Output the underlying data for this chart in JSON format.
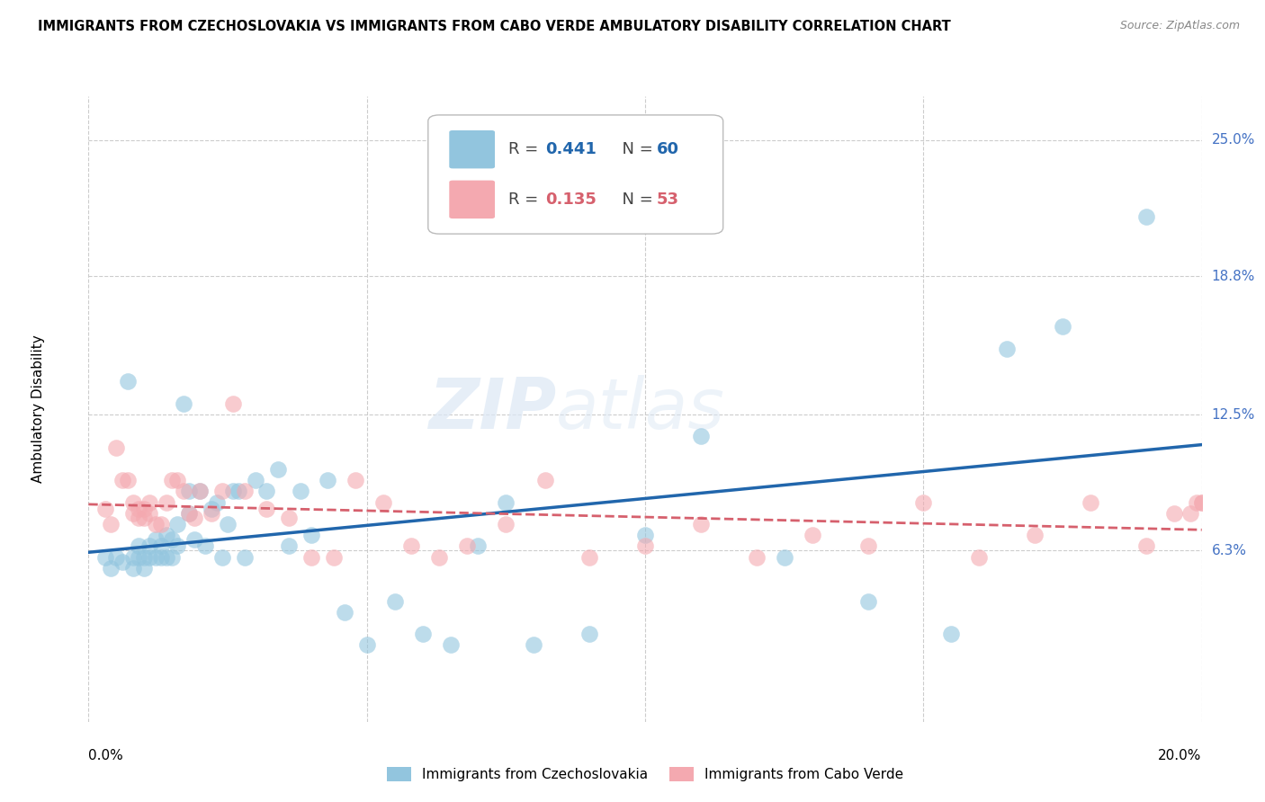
{
  "title": "IMMIGRANTS FROM CZECHOSLOVAKIA VS IMMIGRANTS FROM CABO VERDE AMBULATORY DISABILITY CORRELATION CHART",
  "source": "Source: ZipAtlas.com",
  "ylabel": "Ambulatory Disability",
  "ytick_labels": [
    "6.3%",
    "12.5%",
    "18.8%",
    "25.0%"
  ],
  "ytick_values": [
    0.063,
    0.125,
    0.188,
    0.25
  ],
  "xlim": [
    0.0,
    0.2
  ],
  "ylim": [
    -0.015,
    0.27
  ],
  "legend_blue_r": "R = 0.441",
  "legend_blue_n": "N = 60",
  "legend_pink_r": "R = 0.135",
  "legend_pink_n": "N = 53",
  "legend_blue_label": "Immigrants from Czechoslovakia",
  "legend_pink_label": "Immigrants from Cabo Verde",
  "blue_color": "#92c5de",
  "pink_color": "#f4a9b0",
  "blue_line_color": "#2166ac",
  "pink_line_color": "#d6606d",
  "watermark_zip": "ZIP",
  "watermark_atlas": "atlas",
  "blue_dots_x": [
    0.003,
    0.004,
    0.005,
    0.006,
    0.007,
    0.008,
    0.008,
    0.009,
    0.009,
    0.01,
    0.01,
    0.011,
    0.011,
    0.012,
    0.012,
    0.013,
    0.013,
    0.014,
    0.014,
    0.015,
    0.015,
    0.016,
    0.016,
    0.017,
    0.018,
    0.018,
    0.019,
    0.02,
    0.021,
    0.022,
    0.023,
    0.024,
    0.025,
    0.026,
    0.027,
    0.028,
    0.03,
    0.032,
    0.034,
    0.036,
    0.038,
    0.04,
    0.043,
    0.046,
    0.05,
    0.055,
    0.06,
    0.065,
    0.07,
    0.075,
    0.08,
    0.09,
    0.1,
    0.11,
    0.125,
    0.14,
    0.155,
    0.165,
    0.175,
    0.19
  ],
  "blue_dots_y": [
    0.06,
    0.055,
    0.06,
    0.058,
    0.14,
    0.06,
    0.055,
    0.06,
    0.065,
    0.06,
    0.055,
    0.065,
    0.06,
    0.068,
    0.06,
    0.06,
    0.065,
    0.07,
    0.06,
    0.068,
    0.06,
    0.065,
    0.075,
    0.13,
    0.09,
    0.08,
    0.068,
    0.09,
    0.065,
    0.082,
    0.085,
    0.06,
    0.075,
    0.09,
    0.09,
    0.06,
    0.095,
    0.09,
    0.1,
    0.065,
    0.09,
    0.07,
    0.095,
    0.035,
    0.02,
    0.04,
    0.025,
    0.02,
    0.065,
    0.085,
    0.02,
    0.025,
    0.07,
    0.115,
    0.06,
    0.04,
    0.025,
    0.155,
    0.165,
    0.215
  ],
  "pink_dots_x": [
    0.003,
    0.004,
    0.005,
    0.006,
    0.007,
    0.008,
    0.008,
    0.009,
    0.009,
    0.01,
    0.01,
    0.011,
    0.011,
    0.012,
    0.013,
    0.014,
    0.015,
    0.016,
    0.017,
    0.018,
    0.019,
    0.02,
    0.022,
    0.024,
    0.026,
    0.028,
    0.032,
    0.036,
    0.04,
    0.044,
    0.048,
    0.053,
    0.058,
    0.063,
    0.068,
    0.075,
    0.082,
    0.09,
    0.1,
    0.11,
    0.12,
    0.13,
    0.14,
    0.15,
    0.16,
    0.17,
    0.18,
    0.19,
    0.195,
    0.198,
    0.199,
    0.2,
    0.2
  ],
  "pink_dots_y": [
    0.082,
    0.075,
    0.11,
    0.095,
    0.095,
    0.085,
    0.08,
    0.078,
    0.082,
    0.078,
    0.082,
    0.08,
    0.085,
    0.075,
    0.075,
    0.085,
    0.095,
    0.095,
    0.09,
    0.08,
    0.078,
    0.09,
    0.08,
    0.09,
    0.13,
    0.09,
    0.082,
    0.078,
    0.06,
    0.06,
    0.095,
    0.085,
    0.065,
    0.06,
    0.065,
    0.075,
    0.095,
    0.06,
    0.065,
    0.075,
    0.06,
    0.07,
    0.065,
    0.085,
    0.06,
    0.07,
    0.085,
    0.065,
    0.08,
    0.08,
    0.085,
    0.085,
    0.085
  ]
}
